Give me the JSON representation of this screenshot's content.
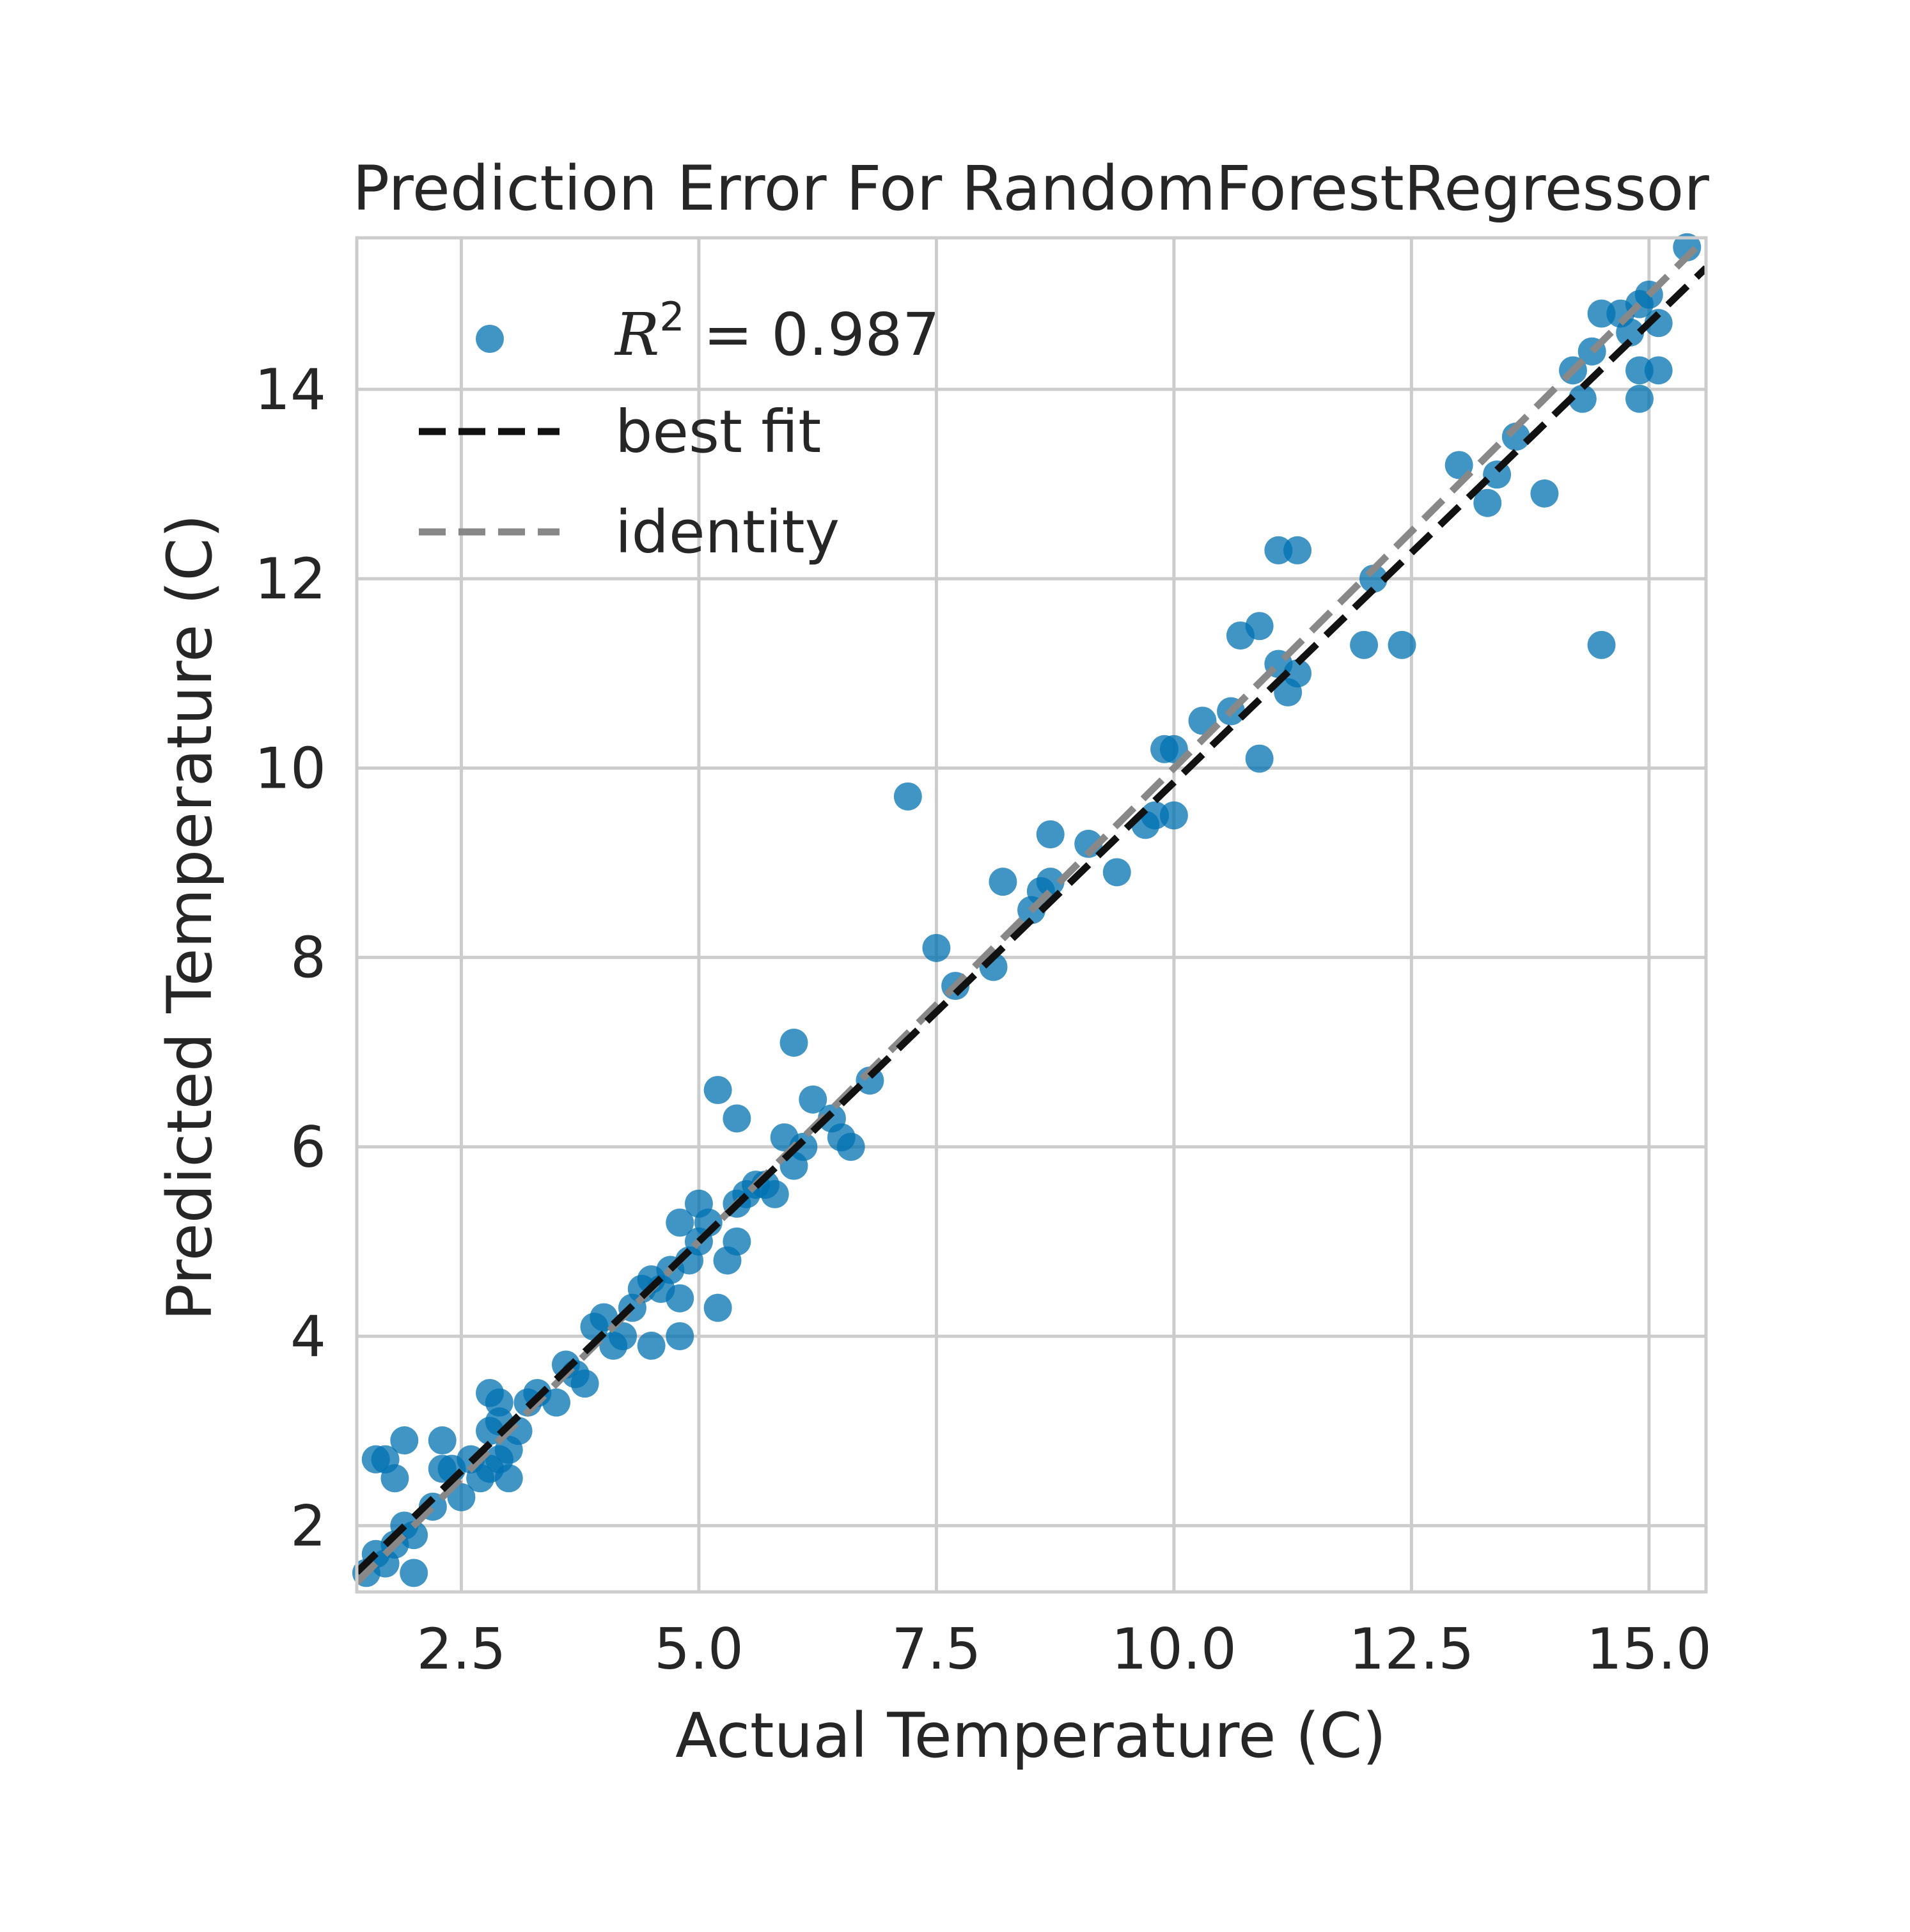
{
  "chart_data": {
    "type": "scatter",
    "title": "Prediction Error For RandomForestRegressor",
    "xlabel": "Actual Temperature (C)",
    "ylabel": "Predicted Temperature (C)",
    "xlim": [
      1.4,
      15.6
    ],
    "ylim": [
      1.3,
      15.6
    ],
    "x_ticks": [
      "2.5",
      "5.0",
      "7.5",
      "10.0",
      "12.5",
      "15.0"
    ],
    "x_tick_values": [
      2.5,
      5.0,
      7.5,
      10.0,
      12.5,
      15.0
    ],
    "y_ticks": [
      "2",
      "4",
      "6",
      "8",
      "10",
      "12",
      "14"
    ],
    "y_tick_values": [
      2,
      4,
      6,
      8,
      10,
      12,
      14
    ],
    "grid": true,
    "legend_position": "upper-left",
    "legend": {
      "r2_label": "R",
      "r2_sup": "2",
      "r2_value": " = 0.987",
      "best_fit": "best fit",
      "identity": "identity"
    },
    "colors": {
      "points": "#0072b2",
      "best_fit": "#111111",
      "identity": "#888888",
      "grid": "#cccccc",
      "frame": "#cccccc",
      "text": "#262626"
    },
    "best_fit_line": {
      "slope": 0.97,
      "intercept": 0.15
    },
    "points": [
      [
        1.5,
        1.5
      ],
      [
        1.6,
        1.7
      ],
      [
        1.7,
        1.6
      ],
      [
        1.8,
        1.8
      ],
      [
        1.9,
        2.0
      ],
      [
        2.0,
        1.9
      ],
      [
        1.6,
        2.7
      ],
      [
        1.7,
        2.7
      ],
      [
        2.0,
        1.5
      ],
      [
        1.9,
        2.9
      ],
      [
        1.8,
        2.5
      ],
      [
        2.2,
        2.2
      ],
      [
        2.3,
        2.6
      ],
      [
        2.4,
        2.6
      ],
      [
        2.5,
        2.3
      ],
      [
        2.6,
        2.7
      ],
      [
        2.3,
        2.9
      ],
      [
        2.7,
        2.5
      ],
      [
        2.8,
        2.6
      ],
      [
        2.8,
        3.0
      ],
      [
        2.8,
        3.4
      ],
      [
        2.9,
        3.3
      ],
      [
        2.9,
        3.1
      ],
      [
        3.0,
        2.8
      ],
      [
        3.0,
        2.5
      ],
      [
        2.9,
        2.7
      ],
      [
        3.1,
        3.0
      ],
      [
        3.2,
        3.3
      ],
      [
        3.3,
        3.4
      ],
      [
        3.5,
        3.3
      ],
      [
        3.6,
        3.7
      ],
      [
        3.7,
        3.6
      ],
      [
        3.8,
        3.5
      ],
      [
        3.9,
        4.1
      ],
      [
        4.0,
        4.2
      ],
      [
        4.1,
        3.9
      ],
      [
        4.2,
        4.0
      ],
      [
        4.3,
        4.3
      ],
      [
        4.4,
        4.5
      ],
      [
        4.5,
        4.6
      ],
      [
        4.6,
        4.5
      ],
      [
        4.5,
        3.9
      ],
      [
        4.7,
        4.7
      ],
      [
        4.8,
        4.4
      ],
      [
        4.8,
        4.0
      ],
      [
        4.9,
        4.8
      ],
      [
        5.0,
        5.0
      ],
      [
        5.0,
        5.4
      ],
      [
        4.8,
        5.2
      ],
      [
        5.1,
        5.2
      ],
      [
        5.2,
        4.3
      ],
      [
        5.3,
        4.8
      ],
      [
        5.4,
        5.0
      ],
      [
        5.4,
        5.4
      ],
      [
        5.5,
        5.5
      ],
      [
        5.6,
        5.6
      ],
      [
        5.7,
        5.6
      ],
      [
        5.8,
        5.5
      ],
      [
        5.9,
        6.1
      ],
      [
        6.0,
        5.8
      ],
      [
        6.1,
        6.0
      ],
      [
        5.2,
        6.6
      ],
      [
        5.4,
        6.3
      ],
      [
        6.0,
        7.1
      ],
      [
        6.2,
        6.5
      ],
      [
        6.4,
        6.3
      ],
      [
        6.5,
        6.1
      ],
      [
        6.6,
        6.0
      ],
      [
        6.8,
        6.7
      ],
      [
        7.2,
        9.7
      ],
      [
        7.5,
        8.1
      ],
      [
        7.7,
        7.7
      ],
      [
        8.1,
        7.9
      ],
      [
        8.2,
        8.8
      ],
      [
        8.5,
        8.5
      ],
      [
        8.6,
        8.7
      ],
      [
        8.7,
        9.3
      ],
      [
        8.7,
        8.8
      ],
      [
        9.1,
        9.2
      ],
      [
        9.4,
        8.9
      ],
      [
        9.7,
        9.4
      ],
      [
        9.8,
        9.5
      ],
      [
        9.9,
        10.2
      ],
      [
        10.0,
        9.5
      ],
      [
        10.0,
        10.2
      ],
      [
        10.3,
        10.5
      ],
      [
        10.6,
        10.6
      ],
      [
        10.7,
        11.4
      ],
      [
        10.9,
        11.5
      ],
      [
        10.9,
        10.1
      ],
      [
        11.1,
        11.1
      ],
      [
        11.1,
        12.3
      ],
      [
        11.2,
        10.8
      ],
      [
        11.3,
        11.0
      ],
      [
        11.3,
        12.3
      ],
      [
        12.0,
        11.3
      ],
      [
        12.1,
        12.0
      ],
      [
        12.4,
        11.3
      ],
      [
        13.0,
        13.2
      ],
      [
        13.3,
        12.8
      ],
      [
        13.4,
        13.1
      ],
      [
        13.6,
        13.5
      ],
      [
        13.9,
        12.9
      ],
      [
        14.2,
        14.2
      ],
      [
        14.3,
        13.9
      ],
      [
        14.4,
        14.4
      ],
      [
        14.5,
        14.8
      ],
      [
        14.5,
        11.3
      ],
      [
        14.7,
        14.8
      ],
      [
        14.8,
        14.6
      ],
      [
        14.9,
        14.9
      ],
      [
        14.9,
        14.2
      ],
      [
        14.9,
        13.9
      ],
      [
        15.0,
        15.0
      ],
      [
        15.1,
        14.7
      ],
      [
        15.1,
        14.2
      ],
      [
        15.4,
        15.5
      ]
    ]
  }
}
